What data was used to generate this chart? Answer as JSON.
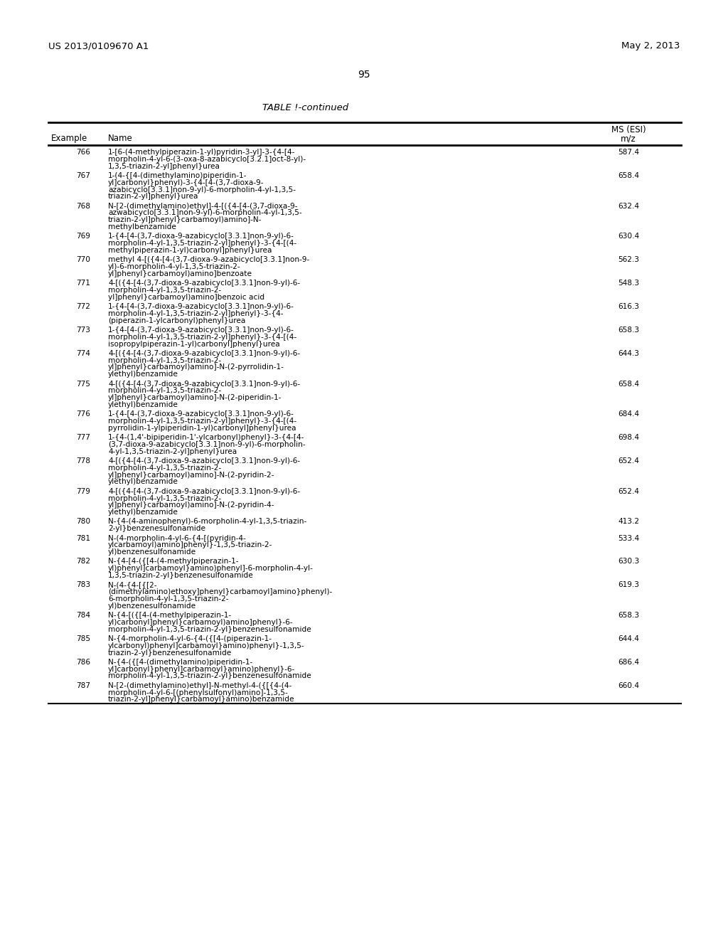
{
  "patent_number": "US 2013/0109670 A1",
  "date": "May 2, 2013",
  "page_number": "95",
  "table_title": "TABLE !-continued",
  "col1_header": "Example",
  "col2_header": "Name",
  "col3_header_line1": "MS (ESI)",
  "col3_header_line2": "m/z",
  "rows": [
    {
      "example": "766",
      "name": "1-[6-(4-methylpiperazin-1-yl)pyridin-3-yl]-3-{4-[4-\nmorpholin-4-yl-6-(3-oxa-8-azabicyclo[3.2.1]oct-8-yl)-\n1,3,5-triazin-2-yl]phenyl}urea",
      "ms": "587.4"
    },
    {
      "example": "767",
      "name": "1-(4-{[4-(dimethylamino)piperidin-1-\nyl]carbonyl}phenyl)-3-{4-[4-(3,7-dioxa-9-\nazabicyclo[3.3.1]non-9-yl)-6-morpholin-4-yl-1,3,5-\ntriazin-2-yl]phenyl}urea",
      "ms": "658.4"
    },
    {
      "example": "768",
      "name": "N-[2-(dimethylamino)ethyl]-4-[({4-[4-(3,7-dioxa-9-\nazwabicyclo[3.3.1]non-9-yl)-6-morpholin-4-yl-1,3,5-\ntriazin-2-yl]phenyl}carbamoyl)amino]-N-\nmethylbenzamide",
      "ms": "632.4"
    },
    {
      "example": "769",
      "name": "1-{4-[4-(3,7-dioxa-9-azabicyclo[3.3.1]non-9-yl)-6-\nmorpholin-4-yl-1,3,5-triazin-2-yl]phenyl}-3-{4-[(4-\nmethylpiperazin-1-yl)carbonyl]phenyl}urea",
      "ms": "630.4"
    },
    {
      "example": "770",
      "name": "methyl 4-[({4-[4-(3,7-dioxa-9-azabicyclo[3.3.1]non-9-\nyl)-6-morpholin-4-yl-1,3,5-triazin-2-\nyl]phenyl}carbamoyl)amino]benzoate",
      "ms": "562.3"
    },
    {
      "example": "771",
      "name": "4-[({4-[4-(3,7-dioxa-9-azabicyclo[3.3.1]non-9-yl)-6-\nmorpholin-4-yl-1,3,5-triazin-2-\nyl]phenyl}carbamoyl)amino]benzoic acid",
      "ms": "548.3"
    },
    {
      "example": "772",
      "name": "1-{4-[4-(3,7-dioxa-9-azabicyclo[3.3.1]non-9-yl)-6-\nmorpholin-4-yl-1,3,5-triazin-2-yl]phenyl}-3-{4-\n(piperazin-1-ylcarbonyl)phenyl}urea",
      "ms": "616.3"
    },
    {
      "example": "773",
      "name": "1-{4-[4-(3,7-dioxa-9-azabicyclo[3.3.1]non-9-yl)-6-\nmorpholin-4-yl-1,3,5-triazin-2-yl]phenyl}-3-{4-[(4-\nisopropylpiperazin-1-yl)carbonyl]phenyl}urea",
      "ms": "658.3"
    },
    {
      "example": "774",
      "name": "4-[({4-[4-(3,7-dioxa-9-azabicyclo[3.3.1]non-9-yl)-6-\nmorpholin-4-yl-1,3,5-triazin-2-\nyl]phenyl}carbamoyl)amino]-N-(2-pyrrolidin-1-\nylethyl)benzamide",
      "ms": "644.3"
    },
    {
      "example": "775",
      "name": "4-[({4-[4-(3,7-dioxa-9-azabicyclo[3.3.1]non-9-yl)-6-\nmorpholin-4-yl-1,3,5-triazin-2-\nyl]phenyl}carbamoyl)amino]-N-(2-piperidin-1-\nylethyl)benzamide",
      "ms": "658.4"
    },
    {
      "example": "776",
      "name": "1-{4-[4-(3,7-dioxa-9-azabicyclo[3.3.1]non-9-yl)-6-\nmorpholin-4-yl-1,3,5-triazin-2-yl]phenyl}-3-{4-[(4-\npyrrolidin-1-ylpiperidin-1-yl)carbonyl]phenyl}urea",
      "ms": "684.4"
    },
    {
      "example": "777",
      "name": "1-{4-(1,4'-bipiperidin-1'-ylcarbonyl)phenyl}-3-{4-[4-\n(3,7-dioxa-9-azabicyclo[3.3.1]non-9-yl)-6-morpholin-\n4-yl-1,3,5-triazin-2-yl]phenyl}urea",
      "ms": "698.4"
    },
    {
      "example": "778",
      "name": "4-[({4-[4-(3,7-dioxa-9-azabicyclo[3.3.1]non-9-yl)-6-\nmorpholin-4-yl-1,3,5-triazin-2-\nyl]phenyl}carbamoyl)amino]-N-(2-pyridin-2-\nylethyl)benzamide",
      "ms": "652.4"
    },
    {
      "example": "779",
      "name": "4-[({4-[4-(3,7-dioxa-9-azabicyclo[3.3.1]non-9-yl)-6-\nmorpholin-4-yl-1,3,5-triazin-2-\nyl]phenyl}carbamoyl)amino]-N-(2-pyridin-4-\nylethyl)benzamide",
      "ms": "652.4"
    },
    {
      "example": "780",
      "name": "N-{4-(4-aminophenyl)-6-morpholin-4-yl-1,3,5-triazin-\n2-yl}benzenesulfonamide",
      "ms": "413.2"
    },
    {
      "example": "781",
      "name": "N-(4-morpholin-4-yl-6-{4-[(pyridin-4-\nylcarbamoyl)amino]phenyl}-1,3,5-triazin-2-\nyl)benzenesulfonamide",
      "ms": "533.4"
    },
    {
      "example": "782",
      "name": "N-{4-[4-({[4-(4-methylpiperazin-1-\nyl)phenyl]carbamoyl}amino)phenyl]-6-morpholin-4-yl-\n1,3,5-triazin-2-yl}benzenesulfonamide",
      "ms": "630.3"
    },
    {
      "example": "783",
      "name": "N-(4-{4-[{[2-\n(dimethylamino)ethoxy]phenyl}carbamoyl]amino}phenyl)-\n6-morpholin-4-yl-1,3,5-triazin-2-\nyl)benzenesulfonamide",
      "ms": "619.3"
    },
    {
      "example": "784",
      "name": "N-{4-[({[4-(4-methylpiperazin-1-\nyl)carbonyl]phenyl}carbamoyl)amino]phenyl}-6-\nmorpholin-4-yl-1,3,5-triazin-2-yl}benzenesulfonamide",
      "ms": "658.3"
    },
    {
      "example": "785",
      "name": "N-{4-morpholin-4-yl-6-{4-({[4-(piperazin-1-\nylcarbonyl)phenyl]carbamoyl}amino)phenyl}-1,3,5-\ntriazin-2-yl}benzenesulfonamide",
      "ms": "644.4"
    },
    {
      "example": "786",
      "name": "N-{4-({[4-(dimethylamino)piperidin-1-\nyl]carbonyl}phenyl]carbamoyl}amino)phenyl}-6-\nmorpholin-4-yl-1,3,5-triazin-2-yl}benzenesulfonamide",
      "ms": "686.4"
    },
    {
      "example": "787",
      "name": "N-[2-(dimethylamino)ethyl]-N-methyl-4-({[{4-(4-\nmorpholin-4-yl-6-[(phenylsulfonyl)amino]-1,3,5-\ntriazin-2-yl]phenyl}carbamoyl}amino)benzamide",
      "ms": "660.4"
    }
  ]
}
